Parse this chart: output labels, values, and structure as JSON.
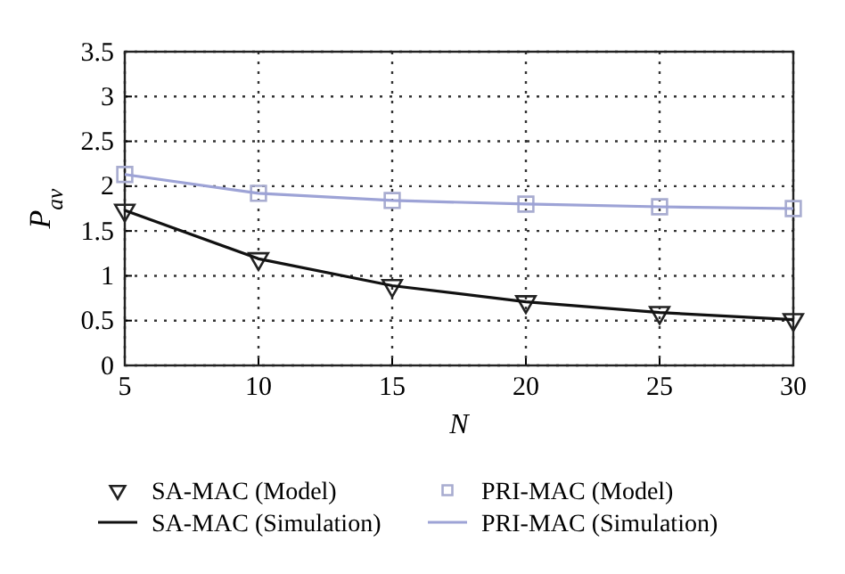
{
  "chart_data": {
    "type": "line",
    "xlabel": "N",
    "ylabel": "P$_{av}$",
    "x": [
      5,
      10,
      15,
      20,
      25,
      30
    ],
    "xlim": [
      5,
      30
    ],
    "xticks": [
      5,
      10,
      15,
      20,
      25,
      30
    ],
    "ylim": [
      0,
      3.5
    ],
    "yticks": [
      0,
      0.5,
      1,
      1.5,
      2,
      2.5,
      3,
      3.5
    ],
    "grid": true,
    "legend": "bottom",
    "series": [
      {
        "name": "SA-MAC (Model)",
        "type": "scatter",
        "marker": "triangle",
        "color": "#222222",
        "values": [
          1.73,
          1.19,
          0.89,
          0.71,
          0.59,
          0.51
        ]
      },
      {
        "name": "PRI-MAC (Model)",
        "type": "scatter",
        "marker": "square",
        "color": "#a8acd0",
        "values": [
          2.13,
          1.92,
          1.84,
          1.8,
          1.77,
          1.75
        ]
      },
      {
        "name": "SA-MAC (Simulation)",
        "marker": "none",
        "line_style": "solid",
        "color": "#111111",
        "values": [
          1.73,
          1.19,
          0.89,
          0.71,
          0.59,
          0.51
        ]
      },
      {
        "name": "PRI-MAC (Simulation)",
        "marker": "none",
        "line_style": "solid",
        "color": "#9da3d6",
        "values": [
          2.13,
          1.92,
          1.84,
          1.8,
          1.77,
          1.75
        ]
      }
    ]
  }
}
